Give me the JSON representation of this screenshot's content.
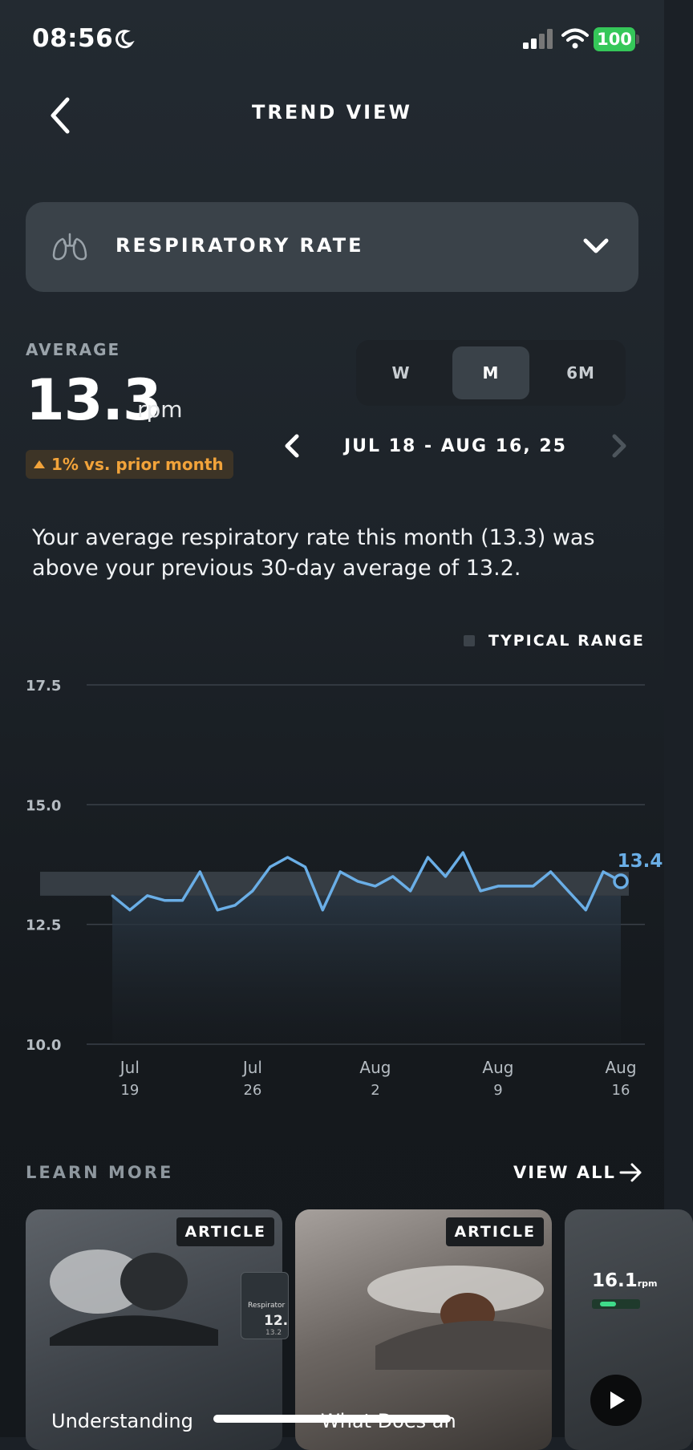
{
  "status_bar": {
    "time": "08:56",
    "battery": "100"
  },
  "header": {
    "title": "TREND VIEW"
  },
  "metric": {
    "label": "RESPIRATORY RATE"
  },
  "average": {
    "label": "AVERAGE",
    "value": "13.3",
    "unit": "rpm",
    "delta": "1% vs. prior month"
  },
  "range_tabs": [
    "W",
    "M",
    "6M"
  ],
  "selected_range": "M",
  "date_range": "JUL 18 - AUG 16, 25",
  "summary": "Your average respiratory rate this month (13.3) was above your previous 30-day average of 13.2.",
  "legend": {
    "typical_range": "TYPICAL RANGE"
  },
  "chart_data": {
    "type": "line",
    "title": "",
    "xlabel": "",
    "ylabel": "",
    "ylim": [
      10.0,
      17.5
    ],
    "y_ticks": [
      "17.5",
      "15.0",
      "12.5",
      "10.0"
    ],
    "x_tick_labels": [
      {
        "month": "Jul",
        "day": "19"
      },
      {
        "month": "Jul",
        "day": "26"
      },
      {
        "month": "Aug",
        "day": "2"
      },
      {
        "month": "Aug",
        "day": "9"
      },
      {
        "month": "Aug",
        "day": "16"
      }
    ],
    "typical_range": [
      13.1,
      13.6
    ],
    "series": [
      {
        "x": [
          "Jul 18",
          "Jul 19",
          "Jul 20",
          "Jul 21",
          "Jul 22",
          "Jul 23",
          "Jul 24",
          "Jul 25",
          "Jul 26",
          "Jul 27",
          "Jul 28",
          "Jul 29",
          "Jul 30",
          "Jul 31",
          "Aug 1",
          "Aug 2",
          "Aug 3",
          "Aug 4",
          "Aug 5",
          "Aug 6",
          "Aug 7",
          "Aug 8",
          "Aug 9",
          "Aug 10",
          "Aug 11",
          "Aug 12",
          "Aug 13",
          "Aug 14",
          "Aug 15",
          "Aug 16"
        ],
        "values": [
          13.1,
          12.8,
          13.1,
          13.0,
          13.0,
          13.6,
          12.8,
          12.9,
          13.2,
          13.7,
          13.9,
          13.7,
          12.8,
          13.6,
          13.4,
          13.3,
          13.5,
          13.2,
          13.9,
          13.5,
          14.0,
          13.2,
          13.3,
          13.3,
          13.3,
          13.6,
          13.2,
          12.8,
          13.6,
          13.4
        ]
      }
    ],
    "last_value_label": "13.4",
    "grid": true
  },
  "learn_more": {
    "label": "LEARN MORE",
    "view_all": "VIEW ALL",
    "cards": [
      {
        "badge": "ARTICLE",
        "title": "Understanding",
        "inset_label": "Respirator",
        "inset_value": "12.",
        "inset_sub": "13.2"
      },
      {
        "badge": "ARTICLE",
        "title": "What Does an"
      },
      {
        "value": "16.1",
        "unit": "rpm"
      }
    ]
  },
  "colors": {
    "line": "#6aaee6",
    "accent_orange": "#f2a33a",
    "battery_green": "#35c759"
  }
}
